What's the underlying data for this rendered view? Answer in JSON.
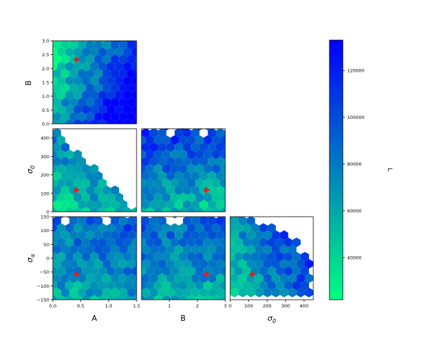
{
  "chart_data": {
    "type": "heatmap",
    "style": "hexbin corner (triangle) plot",
    "colormap": "winter_r",
    "colorbar": {
      "label": "L",
      "range": [
        22000,
        133000
      ],
      "ticks": [
        "40000",
        "60000",
        "80000",
        "100000",
        "120000"
      ],
      "tick_values": [
        40000,
        60000,
        80000,
        100000,
        120000
      ],
      "color_low": "#00ff80",
      "color_high": "#0000ff"
    },
    "marker": {
      "symbol": "+",
      "color": "#e8191b"
    },
    "parameters": [
      {
        "id": "A",
        "label": "A",
        "range": [
          0,
          1.5
        ],
        "ticks": [
          "0.0",
          "0.5",
          "1.0",
          "1.5"
        ],
        "tick_values": [
          0,
          0.5,
          1.0,
          1.5
        ],
        "best_fit": 0.42
      },
      {
        "id": "B",
        "label": "B",
        "range": [
          0,
          3
        ],
        "ticks": [
          "0.0",
          "0.5",
          "1.0",
          "1.5",
          "2.0",
          "2.5",
          "3.0"
        ],
        "tick_values": [
          0,
          0.5,
          1,
          1.5,
          2,
          2.5,
          3
        ],
        "xticks": [
          "1",
          "2",
          "3"
        ],
        "xtick_values": [
          1,
          2,
          3
        ],
        "best_fit": 2.32
      },
      {
        "id": "s0",
        "label": "σ0",
        "label_main": "σ",
        "label_sub": "0",
        "range": [
          0,
          450
        ],
        "ticks": [
          "0",
          "100",
          "200",
          "300",
          "400"
        ],
        "tick_values": [
          0,
          100,
          200,
          300,
          400
        ],
        "best_fit": 118
      },
      {
        "id": "sa",
        "label": "σα",
        "label_main": "σ",
        "label_sub": "α",
        "range": [
          -150,
          150
        ],
        "ticks": [
          "−150",
          "−100",
          "−50",
          "0",
          "50",
          "100",
          "150"
        ],
        "tick_values": [
          -150,
          -100,
          -50,
          0,
          50,
          100,
          150
        ],
        "best_fit": -57
      }
    ],
    "panels": [
      {
        "id": "B-vs-A",
        "x": "A",
        "y": "B"
      },
      {
        "id": "s0-vs-A",
        "x": "A",
        "y": "s0",
        "constraint": "upper-left triangle"
      },
      {
        "id": "s0-vs-B",
        "x": "B",
        "y": "s0"
      },
      {
        "id": "sa-vs-A",
        "x": "A",
        "y": "sa"
      },
      {
        "id": "sa-vs-B",
        "x": "B",
        "y": "sa"
      },
      {
        "id": "sa-vs-s0",
        "x": "s0",
        "y": "sa",
        "constraint": "lower-left triangle"
      }
    ]
  }
}
